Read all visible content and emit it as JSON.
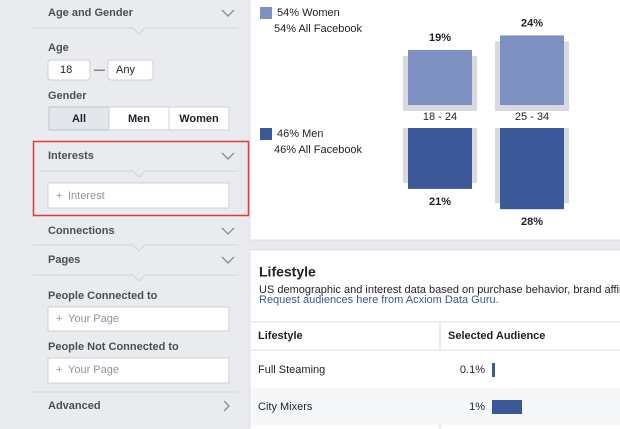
{
  "sidebar": {
    "age_gender": {
      "title": "Age and Gender",
      "age_label": "Age",
      "age_min": "18",
      "separator": "—",
      "age_max": "Any",
      "gender_label": "Gender",
      "gender_options": [
        "All",
        "Men",
        "Women"
      ]
    },
    "interests": {
      "title": "Interests",
      "placeholder": "Interest"
    },
    "connections": {
      "title": "Connections"
    },
    "pages": {
      "title": "Pages"
    },
    "connected": {
      "label": "People Connected to",
      "placeholder": "Your Page"
    },
    "not_connected": {
      "label": "People Not Connected to",
      "placeholder": "Your Page"
    },
    "advanced": {
      "title": "Advanced"
    }
  },
  "age_chart": {
    "categories": [
      "18 - 24",
      "25 - 34"
    ],
    "series": [
      {
        "name": "54% Women",
        "subtitle": "54% All Facebook",
        "color": "#7d90c1",
        "values": [
          19,
          24
        ],
        "value_labels": [
          "19%",
          "24%"
        ]
      },
      {
        "name": "46% Men",
        "subtitle": "46% All Facebook",
        "color": "#3b5999",
        "values": [
          21,
          28
        ],
        "value_labels": [
          "21%",
          "28%"
        ]
      }
    ]
  },
  "lifestyle": {
    "title": "Lifestyle",
    "description": "US demographic and interest data based on purchase behavior, brand affinity",
    "link": "Request audiences here from Acxiom Data Guru.",
    "columns": [
      "Lifestyle",
      "Selected Audience"
    ],
    "bar_color": "#3b5999",
    "rows": [
      {
        "name": "Full Steaming",
        "value": 0.1,
        "label": "0.1%"
      },
      {
        "name": "City Mixers",
        "value": 1,
        "label": "1%"
      }
    ]
  }
}
